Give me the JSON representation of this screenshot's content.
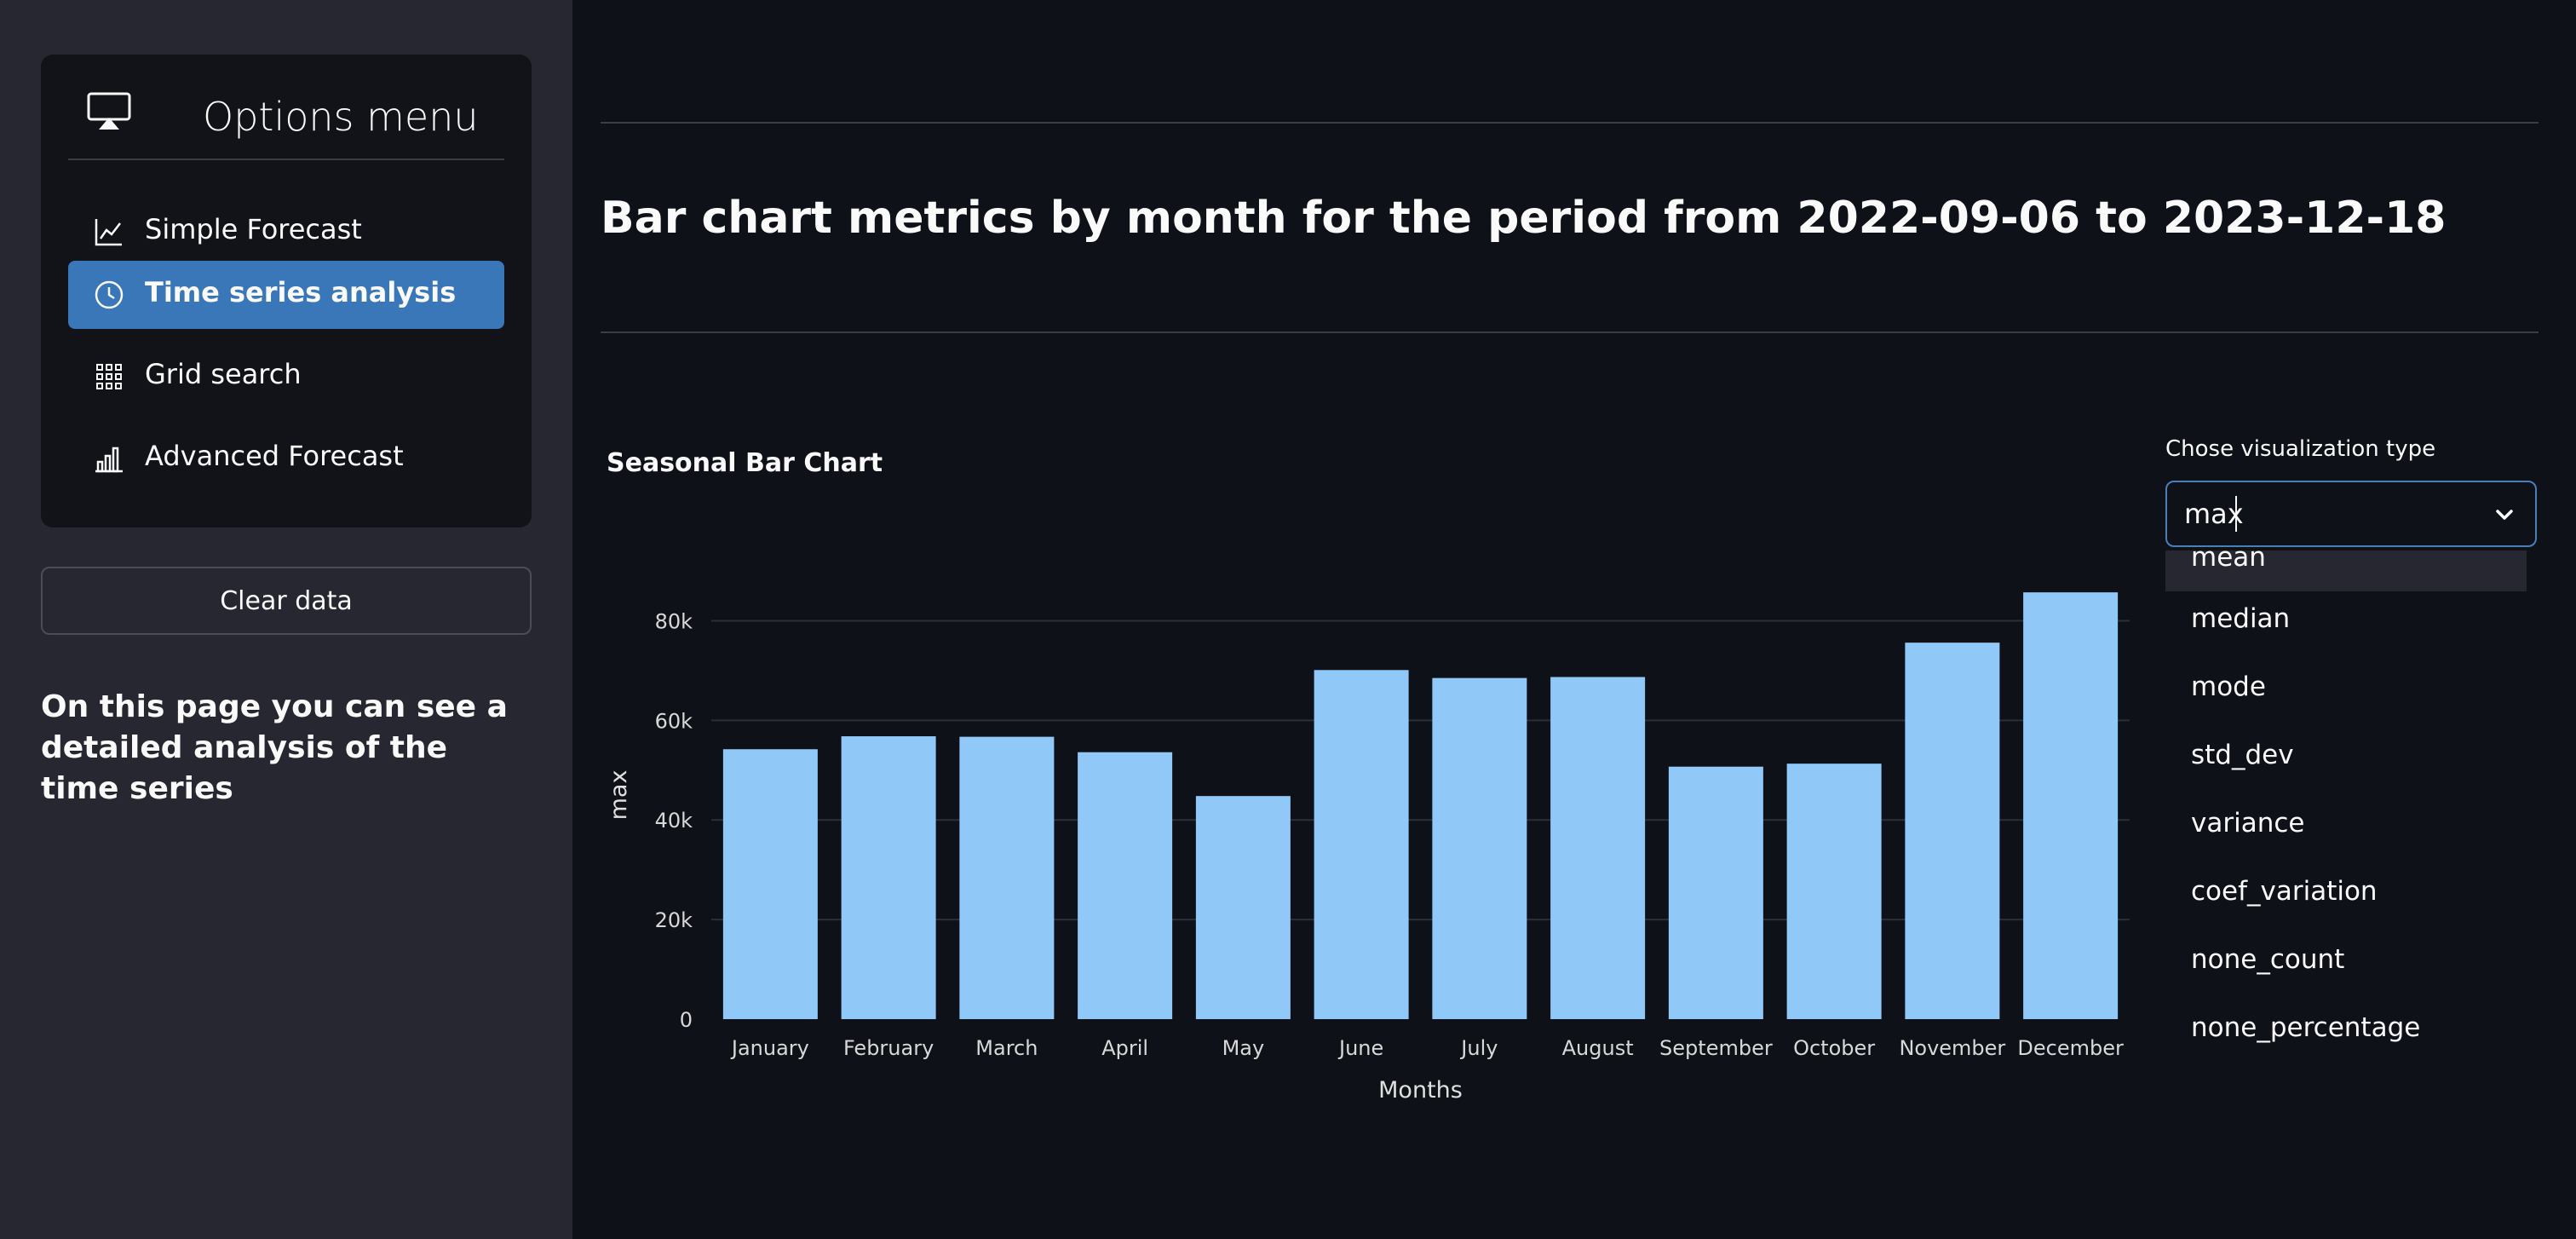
{
  "sidebar": {
    "menu_title": "Options menu",
    "items": [
      {
        "label": "Simple Forecast",
        "icon": "line-chart-icon",
        "active": false
      },
      {
        "label": "Time series analysis",
        "icon": "clock-icon",
        "active": true
      },
      {
        "label": "Grid search",
        "icon": "grid-icon",
        "active": false
      },
      {
        "label": "Advanced Forecast",
        "icon": "bar-chart-icon",
        "active": false
      }
    ],
    "clear_button": "Clear data",
    "description": "On this page you can see a detailed analysis of the time series"
  },
  "main": {
    "page_title": "Bar chart metrics by month for the period from 2022-09-06 to 2023-12-18",
    "chart_title": "Seasonal Bar Chart"
  },
  "select": {
    "label": "Chose visualization type",
    "value": "max",
    "options": [
      "mean",
      "median",
      "mode",
      "std_dev",
      "variance",
      "coef_variation",
      "none_count",
      "none_percentage"
    ]
  },
  "chart_data": {
    "type": "bar",
    "title": "Seasonal Bar Chart",
    "categories": [
      "January",
      "February",
      "March",
      "April",
      "May",
      "June",
      "July",
      "August",
      "September",
      "October",
      "November",
      "December"
    ],
    "values": [
      54200,
      56800,
      56700,
      53600,
      44800,
      70100,
      68500,
      68700,
      50700,
      51300,
      75600,
      85700
    ],
    "xlabel": "Months",
    "ylabel": "max",
    "ylim": [
      0,
      90000
    ],
    "yticks": [
      0,
      20000,
      40000,
      60000,
      80000
    ],
    "ytick_labels": [
      "0",
      "20k",
      "40k",
      "60k",
      "80k"
    ],
    "grid": true,
    "bar_color": "#90c8f8"
  },
  "colors": {
    "background": "#0e1117",
    "sidebar": "#262730",
    "accent": "#3a77b8"
  }
}
